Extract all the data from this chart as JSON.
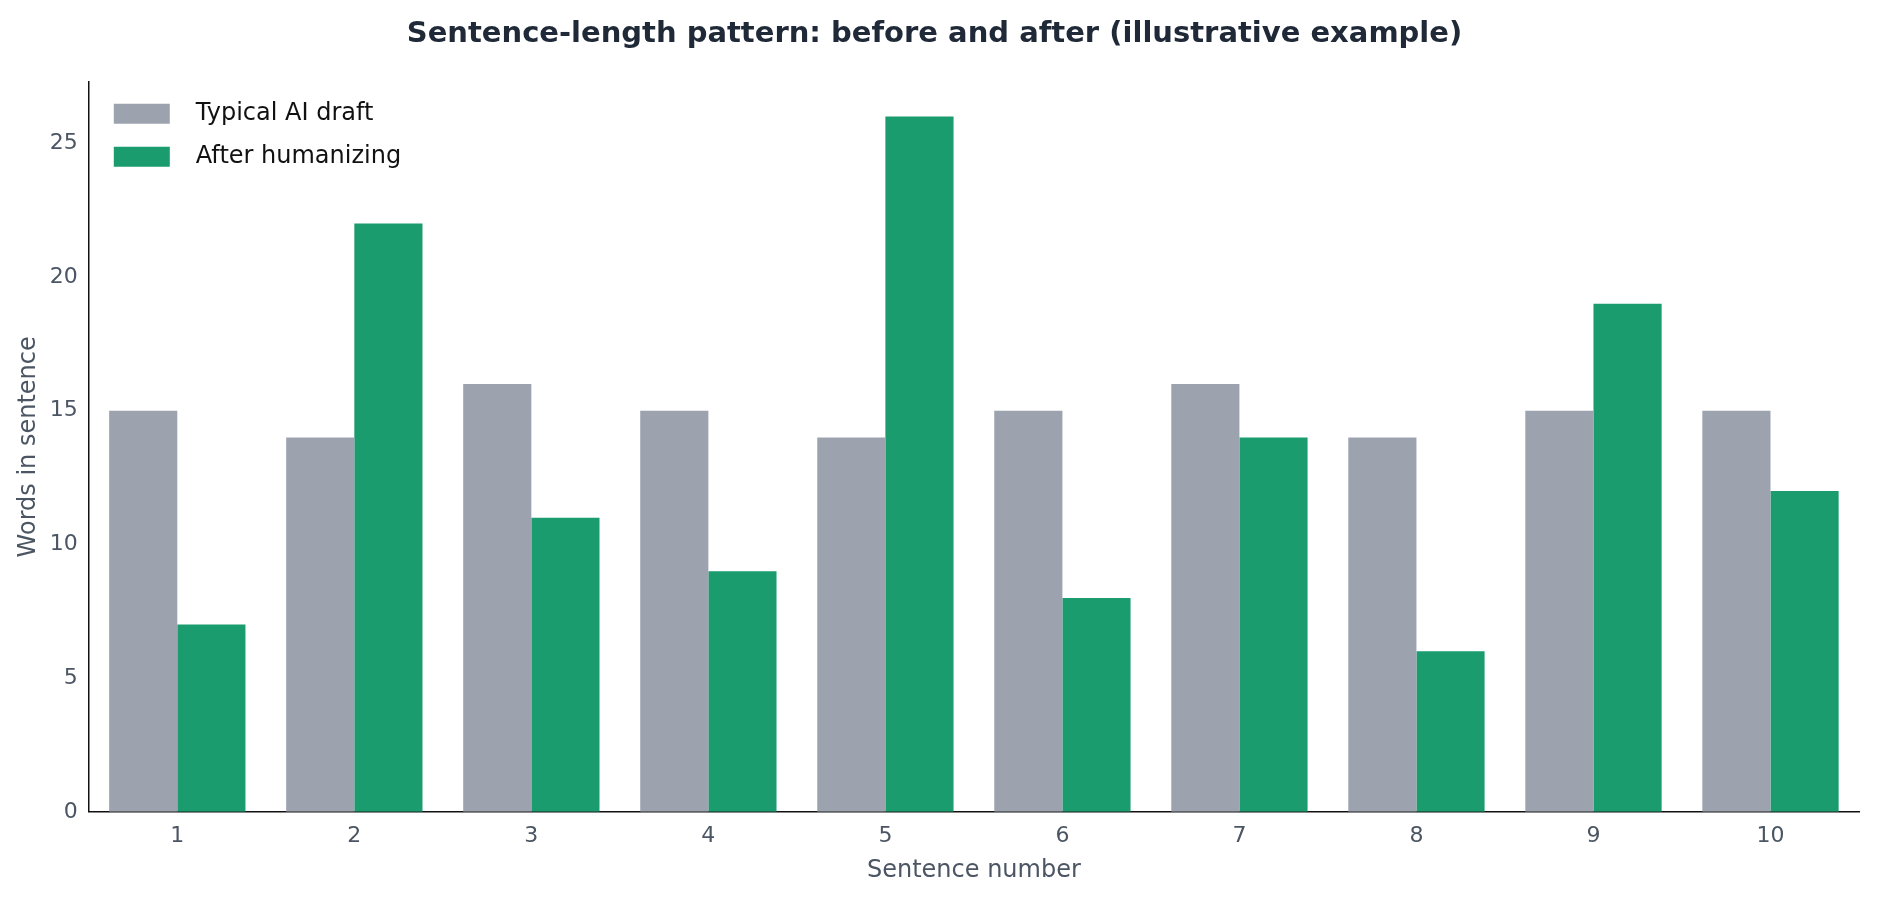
{
  "chart_data": {
    "type": "bar",
    "title": "Sentence-length pattern: before and after (illustrative example)",
    "xlabel": "Sentence number",
    "ylabel": "Words in sentence",
    "categories": [
      "1",
      "2",
      "3",
      "4",
      "5",
      "6",
      "7",
      "8",
      "9",
      "10"
    ],
    "series": [
      {
        "name": "Typical AI draft",
        "color": "#9ca3af",
        "values": [
          15,
          14,
          16,
          15,
          14,
          15,
          16,
          14,
          15,
          15
        ]
      },
      {
        "name": "After humanizing",
        "color": "#1b9c6e",
        "values": [
          7,
          22,
          11,
          9,
          26,
          8,
          14,
          6,
          19,
          12
        ]
      }
    ],
    "ylim": [
      0,
      27.3
    ],
    "yticks": [
      0,
      5,
      10,
      15,
      20,
      25
    ],
    "grid": false,
    "legend": "top left"
  }
}
